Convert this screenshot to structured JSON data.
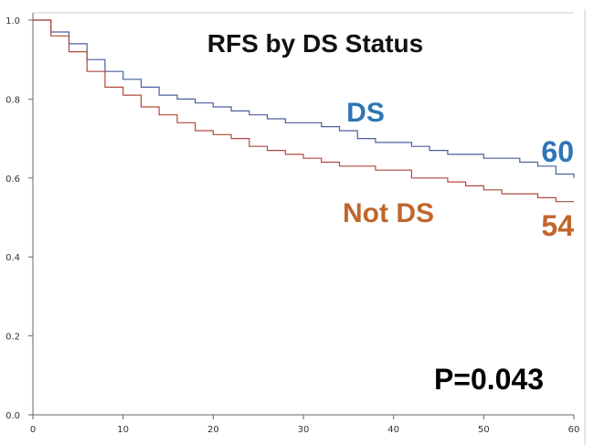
{
  "chart_data": {
    "type": "line",
    "title": "RFS by DS Status",
    "xlabel": "",
    "ylabel": "",
    "xlim": [
      0,
      60
    ],
    "ylim": [
      0,
      1
    ],
    "x_ticks": [
      "0",
      "10",
      "20",
      "30",
      "40",
      "50",
      "60"
    ],
    "y_ticks": [
      "0.0",
      "0.2",
      "0.4",
      "0.6",
      "0.8",
      "1.0"
    ],
    "grid": false,
    "step": true,
    "series": [
      {
        "name": "DS",
        "color": "#4a5f9e",
        "label_color": "#2e75b6",
        "end_label": "60",
        "x": [
          0,
          2,
          4,
          6,
          8,
          10,
          12,
          14,
          16,
          18,
          20,
          22,
          24,
          26,
          28,
          30,
          32,
          34,
          36,
          38,
          40,
          42,
          44,
          46,
          48,
          50,
          52,
          54,
          56,
          58,
          60
        ],
        "y": [
          1.0,
          0.97,
          0.94,
          0.9,
          0.87,
          0.85,
          0.83,
          0.81,
          0.8,
          0.79,
          0.78,
          0.77,
          0.76,
          0.75,
          0.74,
          0.74,
          0.73,
          0.72,
          0.7,
          0.69,
          0.69,
          0.68,
          0.67,
          0.66,
          0.66,
          0.65,
          0.65,
          0.64,
          0.63,
          0.61,
          0.6
        ]
      },
      {
        "name": "Not DS",
        "color": "#b04a3c",
        "label_color": "#c0662c",
        "end_label": "54",
        "x": [
          0,
          2,
          4,
          6,
          8,
          10,
          12,
          14,
          16,
          18,
          20,
          22,
          24,
          26,
          28,
          30,
          32,
          34,
          36,
          38,
          40,
          42,
          44,
          46,
          48,
          50,
          52,
          54,
          56,
          58,
          60
        ],
        "y": [
          1.0,
          0.96,
          0.92,
          0.87,
          0.83,
          0.81,
          0.78,
          0.76,
          0.74,
          0.72,
          0.71,
          0.7,
          0.68,
          0.67,
          0.66,
          0.65,
          0.64,
          0.63,
          0.63,
          0.62,
          0.62,
          0.6,
          0.6,
          0.59,
          0.58,
          0.57,
          0.56,
          0.56,
          0.55,
          0.54,
          0.54
        ]
      }
    ],
    "annotation": "P=0.043"
  }
}
